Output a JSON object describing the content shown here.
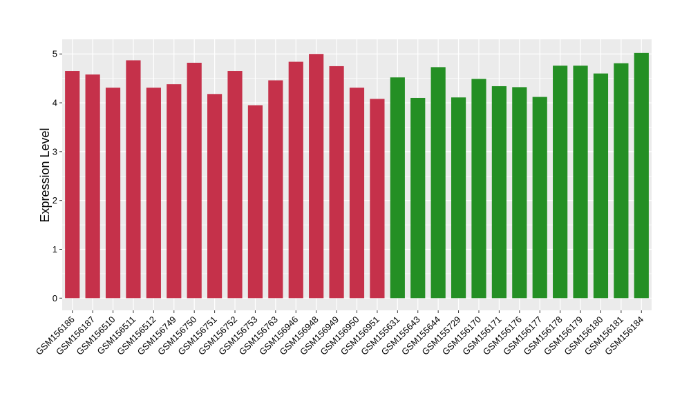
{
  "chart_data": {
    "type": "bar",
    "title": "",
    "xlabel": "",
    "ylabel": "Expression Level",
    "ylim": [
      -0.25,
      5.3
    ],
    "yticks": [
      0,
      1,
      2,
      3,
      4,
      5
    ],
    "grid": true,
    "legend": "none",
    "colors": {
      "group1": "#C5314A",
      "group2": "#248F24",
      "panel_bg": "#EBEBEB",
      "grid": "#FFFFFF"
    },
    "categories": [
      "GSM156186",
      "GSM156187",
      "GSM156510",
      "GSM156511",
      "GSM156512",
      "GSM156749",
      "GSM156750",
      "GSM156751",
      "GSM156752",
      "GSM156753",
      "GSM156763",
      "GSM156946",
      "GSM156948",
      "GSM156949",
      "GSM156950",
      "GSM156951",
      "GSM155631",
      "GSM155643",
      "GSM155644",
      "GSM155729",
      "GSM156170",
      "GSM156171",
      "GSM156176",
      "GSM156177",
      "GSM156178",
      "GSM156179",
      "GSM156180",
      "GSM156181",
      "GSM156184"
    ],
    "values": [
      4.65,
      4.58,
      4.31,
      4.87,
      4.31,
      4.38,
      4.82,
      4.18,
      4.65,
      3.95,
      4.46,
      4.84,
      5.0,
      4.75,
      4.31,
      4.08,
      4.52,
      4.1,
      4.73,
      4.11,
      4.49,
      4.34,
      4.32,
      4.12,
      4.76,
      4.76,
      4.6,
      4.81,
      5.02
    ],
    "groups": [
      1,
      1,
      1,
      1,
      1,
      1,
      1,
      1,
      1,
      1,
      1,
      1,
      1,
      1,
      1,
      1,
      2,
      2,
      2,
      2,
      2,
      2,
      2,
      2,
      2,
      2,
      2,
      2,
      2
    ]
  }
}
